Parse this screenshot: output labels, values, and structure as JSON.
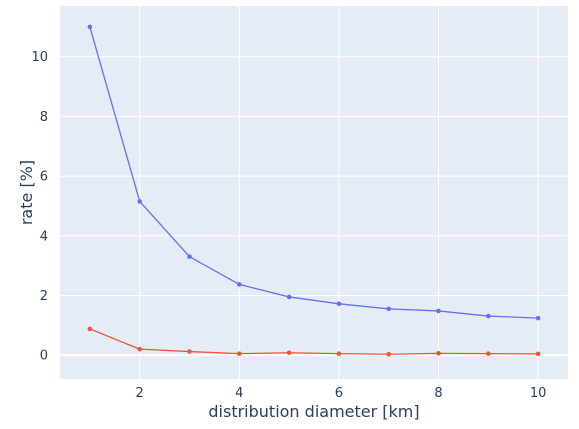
{
  "chart_data": {
    "type": "line",
    "title": "",
    "xlabel": "distribution diameter [km]",
    "ylabel": "rate [%]",
    "xlim": [
      0.4,
      10.6
    ],
    "ylim": [
      -0.8,
      11.7
    ],
    "x_ticks": [
      2,
      4,
      6,
      8,
      10
    ],
    "y_ticks": [
      0,
      2,
      4,
      6,
      8,
      10
    ],
    "grid": true,
    "legend": "none",
    "plot_background": "#e5ecf6",
    "grid_color": "#ffffff",
    "x": [
      1,
      2,
      3,
      4,
      5,
      6,
      7,
      8,
      9,
      10
    ],
    "series": [
      {
        "color": "#636efa",
        "values": [
          11.0,
          5.15,
          3.3,
          2.37,
          1.95,
          1.72,
          1.55,
          1.48,
          1.31,
          1.24
        ]
      },
      {
        "color": "#ef553b",
        "values": [
          0.88,
          0.2,
          0.12,
          0.05,
          0.08,
          0.05,
          0.03,
          0.06,
          0.05,
          0.04
        ]
      }
    ]
  }
}
